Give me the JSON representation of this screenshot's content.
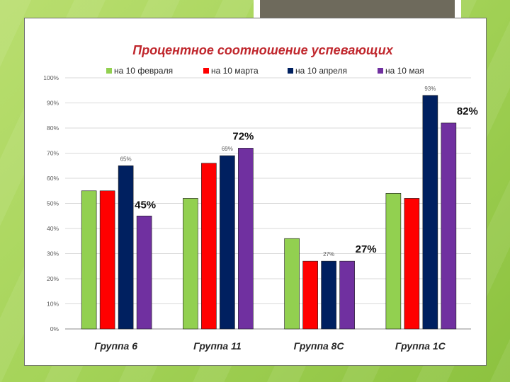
{
  "chart_data": {
    "type": "bar",
    "title": "Процентное соотношение успевающих",
    "categories": [
      "Группа 6",
      "Группа 11",
      "Группа 8С",
      "Группа 1С"
    ],
    "series": [
      {
        "name": "на 10 февраля",
        "color": "#92d050",
        "values": [
          55,
          52,
          36,
          54
        ]
      },
      {
        "name": "на 10 марта",
        "color": "#ff0000",
        "values": [
          55,
          66,
          27,
          52
        ]
      },
      {
        "name": "на 10 апреля",
        "color": "#002060",
        "values": [
          65,
          69,
          27,
          93
        ]
      },
      {
        "name": "на 10 мая",
        "color": "#7030a0",
        "values": [
          45,
          72,
          27,
          82
        ]
      }
    ],
    "y_ticks": [
      "0%",
      "10%",
      "20%",
      "30%",
      "40%",
      "50%",
      "60%",
      "70%",
      "80%",
      "90%",
      "100%"
    ],
    "ylim": [
      0,
      100
    ],
    "legend_position": "top",
    "data_labels": [
      {
        "series": 2,
        "category": 0,
        "text": "65%",
        "emphasis": false
      },
      {
        "series": 3,
        "category": 0,
        "text": "45%",
        "emphasis": true
      },
      {
        "series": 2,
        "category": 1,
        "text": "69%",
        "emphasis": false
      },
      {
        "series": 3,
        "category": 1,
        "text": "72%",
        "emphasis": true
      },
      {
        "series": 2,
        "category": 2,
        "text": "27%",
        "emphasis": false
      },
      {
        "series": 3,
        "category": 2,
        "text": "27%",
        "emphasis": true
      },
      {
        "series": 2,
        "category": 3,
        "text": "93%",
        "emphasis": false
      },
      {
        "series": 3,
        "category": 3,
        "text": "82%",
        "emphasis": true
      }
    ]
  }
}
